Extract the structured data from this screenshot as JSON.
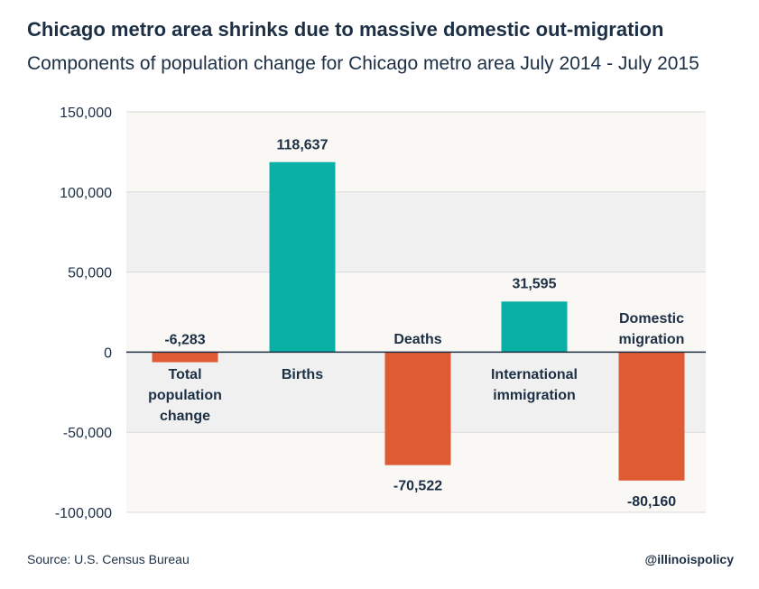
{
  "chart_data": {
    "type": "bar",
    "title": "Chicago metro area shrinks due to massive domestic out-migration",
    "subtitle": "Components of population change for Chicago metro area July 2014 - July 2015",
    "categories": [
      "Total population change",
      "Births",
      "Deaths",
      "International immigration",
      "Domestic migration"
    ],
    "category_lines": [
      [
        "Total",
        "population",
        "change"
      ],
      [
        "Births"
      ],
      [
        "Deaths"
      ],
      [
        "International",
        "immigration"
      ],
      [
        "Domestic",
        "migration"
      ]
    ],
    "values": [
      -6283,
      118637,
      -70522,
      31595,
      -80160
    ],
    "value_labels": [
      "-6,283",
      "118,637",
      "-70,522",
      "31,595",
      "-80,160"
    ],
    "colors": [
      "#de5b34",
      "#0aafa5",
      "#de5b34",
      "#0aafa5",
      "#de5b34"
    ],
    "ylim": [
      -100000,
      150000
    ],
    "yticks": [
      150000,
      100000,
      50000,
      0,
      -50000,
      -100000
    ],
    "ytick_labels": [
      "150,000",
      "100,000",
      "50,000",
      "0",
      "-50,000",
      "-100,000"
    ],
    "xlabel": "",
    "ylabel": "",
    "grid": true
  },
  "footer": {
    "source": "Source: U.S. Census Bureau",
    "handle": "@illinoispolicy"
  },
  "colors": {
    "band_light": "#faf8f5",
    "band_dark": "#f0f0f0",
    "axis": "#1c2f45",
    "text": "#1c2f45"
  }
}
